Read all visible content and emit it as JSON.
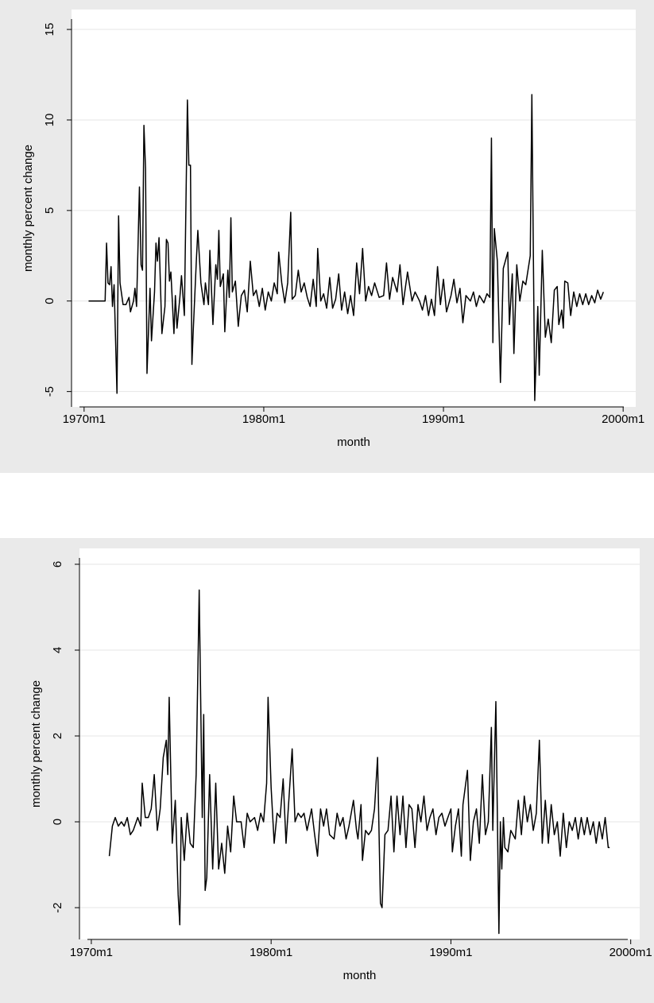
{
  "chart_data": [
    {
      "type": "line",
      "y_label": "monthly percent change",
      "x_label": "month",
      "color": "#000000",
      "grid": true,
      "ylim": [
        -5.85,
        16.1
      ],
      "yticks": [
        -5,
        0,
        5,
        10,
        15
      ],
      "xlim": [
        1969.3,
        2000.7
      ],
      "xticks": [
        {
          "value": 1970,
          "label": "1970m1"
        },
        {
          "value": 1980,
          "label": "1980m1"
        },
        {
          "value": 1990,
          "label": "1990m1"
        },
        {
          "value": 2000,
          "label": "2000m1"
        }
      ],
      "x": [
        1970.25,
        1971.17,
        1971.25,
        1971.33,
        1971.42,
        1971.5,
        1971.58,
        1971.67,
        1971.83,
        1971.92,
        1972.0,
        1972.17,
        1972.33,
        1972.5,
        1972.58,
        1972.75,
        1972.83,
        1972.92,
        1973.08,
        1973.17,
        1973.25,
        1973.33,
        1973.42,
        1973.5,
        1973.67,
        1973.75,
        1973.92,
        1974.0,
        1974.08,
        1974.17,
        1974.33,
        1974.5,
        1974.58,
        1974.67,
        1974.75,
        1974.83,
        1975.0,
        1975.08,
        1975.17,
        1975.33,
        1975.42,
        1975.58,
        1975.75,
        1975.83,
        1975.92,
        1976.0,
        1976.08,
        1976.25,
        1976.33,
        1976.5,
        1976.67,
        1976.75,
        1976.92,
        1977.0,
        1977.17,
        1977.33,
        1977.42,
        1977.5,
        1977.58,
        1977.75,
        1977.83,
        1978.0,
        1978.08,
        1978.17,
        1978.25,
        1978.42,
        1978.58,
        1978.75,
        1978.92,
        1979.08,
        1979.25,
        1979.42,
        1979.58,
        1979.75,
        1979.92,
        1980.08,
        1980.25,
        1980.42,
        1980.58,
        1980.75,
        1980.83,
        1981.0,
        1981.17,
        1981.33,
        1981.5,
        1981.58,
        1981.75,
        1981.92,
        1982.08,
        1982.25,
        1982.42,
        1982.58,
        1982.75,
        1982.92,
        1983.0,
        1983.17,
        1983.33,
        1983.5,
        1983.67,
        1983.83,
        1984.0,
        1984.17,
        1984.33,
        1984.5,
        1984.67,
        1984.83,
        1985.0,
        1985.17,
        1985.33,
        1985.5,
        1985.67,
        1985.83,
        1986.0,
        1986.17,
        1986.42,
        1986.67,
        1986.83,
        1987.0,
        1987.17,
        1987.42,
        1987.58,
        1987.75,
        1988.0,
        1988.25,
        1988.42,
        1988.67,
        1988.83,
        1989.0,
        1989.17,
        1989.33,
        1989.5,
        1989.67,
        1989.83,
        1990.0,
        1990.17,
        1990.42,
        1990.58,
        1990.75,
        1990.92,
        1991.08,
        1991.25,
        1991.5,
        1991.67,
        1991.83,
        1992.0,
        1992.25,
        1992.42,
        1992.58,
        1992.67,
        1992.75,
        1992.83,
        1993.0,
        1993.17,
        1993.33,
        1993.58,
        1993.67,
        1993.83,
        1993.92,
        1994.08,
        1994.25,
        1994.42,
        1994.58,
        1994.83,
        1994.92,
        1995.08,
        1995.25,
        1995.33,
        1995.5,
        1995.67,
        1995.83,
        1996.0,
        1996.17,
        1996.33,
        1996.42,
        1996.58,
        1996.67,
        1996.75,
        1996.92,
        1997.08,
        1997.25,
        1997.42,
        1997.58,
        1997.75,
        1997.92,
        1998.08,
        1998.25,
        1998.42,
        1998.58,
        1998.75,
        1998.9
      ],
      "values": [
        0,
        0,
        3.2,
        1.0,
        0.9,
        1.9,
        -0.3,
        0.9,
        -5.1,
        4.7,
        1.0,
        -0.2,
        -0.2,
        0.2,
        -0.6,
        0.0,
        0.7,
        -0.3,
        6.3,
        2.0,
        1.7,
        9.7,
        7.3,
        -4.0,
        0.7,
        -2.2,
        0.5,
        3.2,
        2.2,
        3.5,
        -1.8,
        -0.3,
        3.4,
        3.2,
        1.1,
        1.6,
        -1.8,
        0.3,
        -1.5,
        0.2,
        1.4,
        -0.8,
        11.1,
        7.5,
        7.5,
        -3.5,
        -1.5,
        2.3,
        3.9,
        1.0,
        -0.2,
        1.0,
        -0.2,
        2.8,
        -1.3,
        2.0,
        1.2,
        3.9,
        0.8,
        1.5,
        -1.7,
        1.7,
        0.2,
        4.6,
        0.5,
        1.1,
        -1.4,
        0.3,
        0.6,
        -0.6,
        2.2,
        0.3,
        0.6,
        -0.3,
        0.7,
        -0.5,
        0.5,
        0.0,
        1.0,
        0.4,
        2.7,
        1.0,
        -0.1,
        1.0,
        4.9,
        0.1,
        0.3,
        1.7,
        0.5,
        1.0,
        0.2,
        -0.3,
        1.2,
        -0.3,
        2.9,
        0.0,
        0.4,
        -0.4,
        1.3,
        -0.4,
        0.1,
        1.5,
        -0.5,
        0.5,
        -0.7,
        0.3,
        -0.8,
        2.1,
        0.4,
        2.9,
        0.0,
        0.8,
        0.3,
        1.0,
        0.2,
        0.3,
        2.1,
        0.1,
        1.3,
        0.5,
        2.0,
        -0.2,
        1.6,
        0.0,
        0.5,
        0.0,
        -0.5,
        0.3,
        -0.8,
        0.1,
        -0.8,
        1.9,
        -0.2,
        1.2,
        -0.6,
        0.3,
        1.2,
        -0.1,
        0.7,
        -1.2,
        0.3,
        0.0,
        0.5,
        -0.3,
        0.3,
        -0.1,
        0.4,
        0.2,
        9.0,
        -2.3,
        4.0,
        2.2,
        -4.5,
        1.8,
        2.7,
        -1.3,
        1.5,
        -2.9,
        2.0,
        0.0,
        1.1,
        0.9,
        2.5,
        11.4,
        -5.5,
        -0.3,
        -4.1,
        2.8,
        -2.0,
        -1.0,
        -2.3,
        0.6,
        0.8,
        -1.3,
        -0.5,
        -1.5,
        1.1,
        1.0,
        -0.8,
        0.5,
        -0.3,
        0.4,
        -0.2,
        0.4,
        -0.2,
        0.3,
        -0.1,
        0.6,
        0.1,
        0.5
      ]
    },
    {
      "type": "line",
      "y_label": "monthly percent change",
      "x_label": "month",
      "color": "#000000",
      "grid": true,
      "ylim": [
        -2.74,
        6.37
      ],
      "yticks": [
        -2,
        0,
        2,
        4,
        6
      ],
      "xlim": [
        1969.34,
        2000.5
      ],
      "xticks": [
        {
          "value": 1970,
          "label": "1970m1"
        },
        {
          "value": 1980,
          "label": "1980m1"
        },
        {
          "value": 1990,
          "label": "1990m1"
        },
        {
          "value": 2000,
          "label": "2000m1"
        }
      ],
      "x": [
        1971.0,
        1971.17,
        1971.33,
        1971.5,
        1971.67,
        1971.83,
        1972.0,
        1972.17,
        1972.33,
        1972.58,
        1972.75,
        1972.83,
        1973.0,
        1973.17,
        1973.33,
        1973.5,
        1973.67,
        1973.83,
        1974.0,
        1974.17,
        1974.25,
        1974.33,
        1974.5,
        1974.67,
        1974.83,
        1974.92,
        1975.0,
        1975.17,
        1975.33,
        1975.5,
        1975.67,
        1975.83,
        1976.0,
        1976.17,
        1976.25,
        1976.33,
        1976.42,
        1976.58,
        1976.75,
        1976.92,
        1977.08,
        1977.25,
        1977.42,
        1977.58,
        1977.75,
        1977.92,
        1978.08,
        1978.33,
        1978.5,
        1978.67,
        1978.83,
        1979.08,
        1979.25,
        1979.42,
        1979.58,
        1979.75,
        1979.83,
        1980.0,
        1980.17,
        1980.33,
        1980.5,
        1980.67,
        1980.83,
        1981.0,
        1981.17,
        1981.33,
        1981.5,
        1981.67,
        1981.83,
        1982.0,
        1982.25,
        1982.42,
        1982.58,
        1982.75,
        1982.92,
        1983.08,
        1983.25,
        1983.5,
        1983.67,
        1983.83,
        1984.0,
        1984.17,
        1984.33,
        1984.58,
        1984.75,
        1984.83,
        1985.0,
        1985.08,
        1985.25,
        1985.42,
        1985.58,
        1985.75,
        1985.92,
        1986.08,
        1986.17,
        1986.33,
        1986.5,
        1986.67,
        1986.83,
        1987.0,
        1987.17,
        1987.33,
        1987.5,
        1987.67,
        1987.83,
        1988.0,
        1988.17,
        1988.33,
        1988.5,
        1988.67,
        1988.83,
        1989.0,
        1989.17,
        1989.33,
        1989.5,
        1989.67,
        1989.83,
        1990.0,
        1990.08,
        1990.25,
        1990.42,
        1990.58,
        1990.67,
        1990.92,
        1991.08,
        1991.25,
        1991.42,
        1991.58,
        1991.75,
        1991.92,
        1992.08,
        1992.25,
        1992.33,
        1992.5,
        1992.67,
        1992.75,
        1992.83,
        1992.92,
        1993.0,
        1993.17,
        1993.33,
        1993.58,
        1993.75,
        1993.92,
        1994.08,
        1994.25,
        1994.42,
        1994.58,
        1994.75,
        1994.92,
        1995.08,
        1995.25,
        1995.42,
        1995.58,
        1995.75,
        1995.92,
        1996.08,
        1996.25,
        1996.42,
        1996.58,
        1996.75,
        1996.92,
        1997.08,
        1997.25,
        1997.42,
        1997.58,
        1997.75,
        1997.92,
        1998.08,
        1998.25,
        1998.42,
        1998.58,
        1998.75,
        1998.83
      ],
      "values": [
        -0.8,
        -0.1,
        0.1,
        -0.1,
        0.0,
        -0.1,
        0.1,
        -0.3,
        -0.2,
        0.1,
        -0.1,
        0.9,
        0.1,
        0.1,
        0.3,
        1.1,
        -0.2,
        0.3,
        1.5,
        1.9,
        1.1,
        2.9,
        -0.5,
        0.5,
        -1.7,
        -2.4,
        0.1,
        -0.9,
        0.2,
        -0.5,
        -0.6,
        1.1,
        5.4,
        0.1,
        2.5,
        -1.6,
        -1.3,
        1.1,
        -1.1,
        0.9,
        -1.1,
        -0.5,
        -1.2,
        -0.1,
        -0.7,
        0.6,
        0.0,
        0.0,
        -0.6,
        0.2,
        0.0,
        0.1,
        -0.2,
        0.2,
        0.0,
        0.9,
        2.9,
        0.8,
        -0.5,
        0.2,
        0.1,
        1.0,
        -0.5,
        0.6,
        1.7,
        0.0,
        0.2,
        0.1,
        0.2,
        -0.2,
        0.3,
        -0.3,
        -0.8,
        0.3,
        -0.1,
        0.3,
        -0.3,
        -0.4,
        0.2,
        -0.1,
        0.1,
        -0.4,
        -0.1,
        0.5,
        -0.2,
        -0.4,
        0.4,
        -0.9,
        -0.2,
        -0.3,
        -0.2,
        0.3,
        1.5,
        -1.9,
        -2.0,
        -0.3,
        -0.2,
        0.6,
        -0.7,
        0.6,
        -0.3,
        0.6,
        -0.6,
        0.4,
        0.3,
        -0.6,
        0.4,
        0.0,
        0.6,
        -0.2,
        0.1,
        0.3,
        -0.3,
        0.1,
        0.2,
        -0.1,
        0.1,
        0.3,
        -0.7,
        -0.1,
        0.3,
        -0.8,
        0.4,
        1.2,
        -0.9,
        0.0,
        0.3,
        -0.5,
        1.1,
        -0.3,
        0.0,
        2.2,
        -0.2,
        2.8,
        -2.6,
        0.0,
        -1.1,
        0.1,
        -0.6,
        -0.7,
        -0.2,
        -0.4,
        0.5,
        -0.3,
        0.6,
        0.0,
        0.4,
        -0.2,
        0.2,
        1.9,
        -0.5,
        0.5,
        -0.5,
        0.4,
        -0.3,
        0.0,
        -0.8,
        0.2,
        -0.6,
        0.0,
        -0.2,
        0.1,
        -0.4,
        0.1,
        -0.3,
        0.1,
        -0.3,
        0.0,
        -0.5,
        0.0,
        -0.4,
        0.1,
        -0.6,
        -0.6
      ]
    }
  ]
}
